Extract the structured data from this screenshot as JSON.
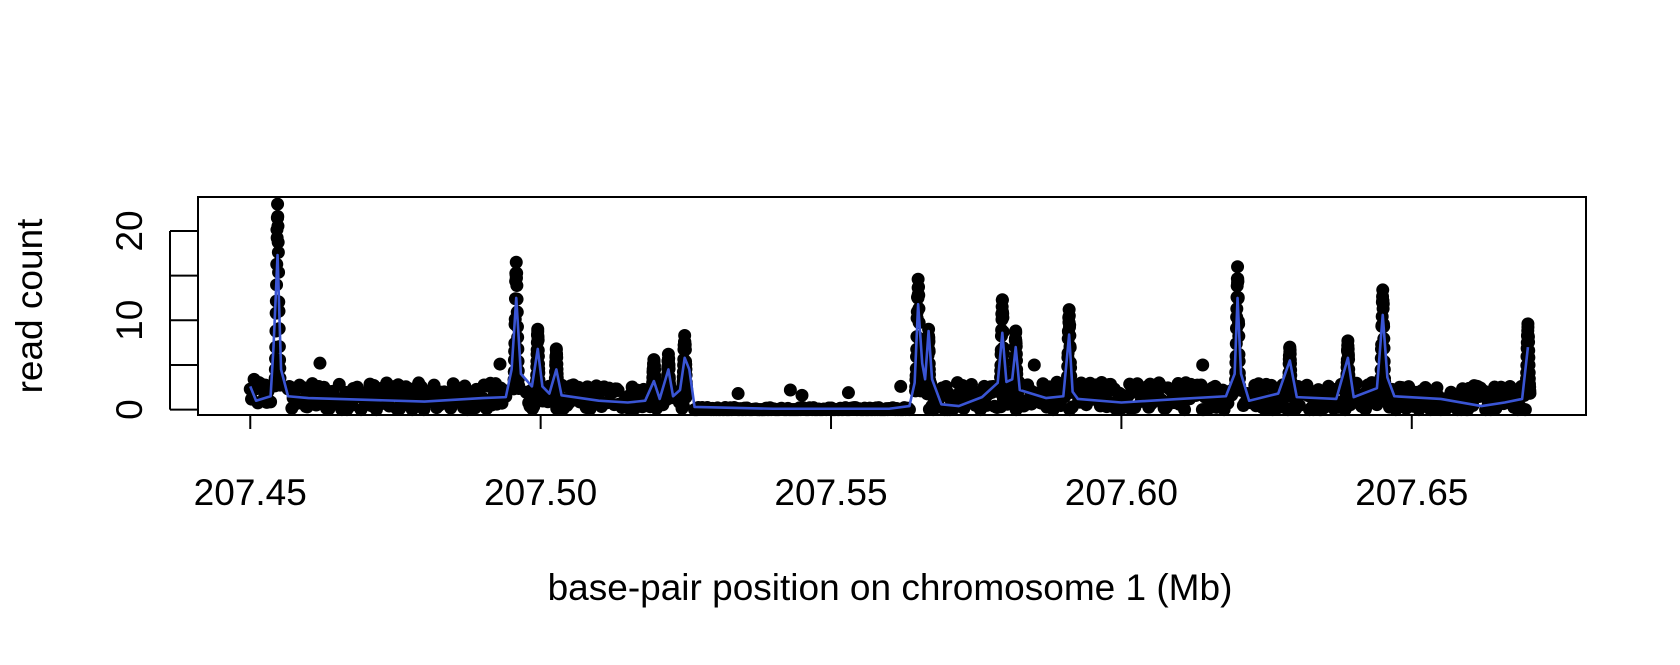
{
  "chart_data": {
    "type": "scatter",
    "title": "",
    "xlabel": "base-pair position on chromosome 1 (Mb)",
    "ylabel": "read count",
    "xlim": [
      207.441,
      207.68
    ],
    "ylim": [
      -0.6,
      23.8
    ],
    "xticks": [
      207.45,
      207.5,
      207.55,
      207.6,
      207.65
    ],
    "xtick_labels": [
      "207.45",
      "207.50",
      "207.55",
      "207.60",
      "207.65"
    ],
    "yticks": [
      0,
      5,
      10,
      15,
      20
    ],
    "ytick_labels": [
      "0",
      "",
      "10",
      "",
      "20"
    ],
    "grid": false,
    "legend": "none",
    "colors": {
      "points": "#000000",
      "smooth_line": "#3a55d4"
    },
    "series": [
      {
        "type": "points",
        "baseline_segments": [
          {
            "from": 207.45,
            "to": 207.4535,
            "mean": 1.8,
            "spread": 1.6
          },
          {
            "from": 207.4565,
            "to": 207.494,
            "mean": 1.4,
            "spread": 1.6
          },
          {
            "from": 207.4975,
            "to": 207.525,
            "mean": 1.4,
            "spread": 1.4
          },
          {
            "from": 207.5265,
            "to": 207.5635,
            "mean": 0.0,
            "spread": 0.25
          },
          {
            "from": 207.5665,
            "to": 207.619,
            "mean": 1.5,
            "spread": 1.6
          },
          {
            "from": 207.621,
            "to": 207.644,
            "mean": 1.5,
            "spread": 1.6
          },
          {
            "from": 207.6455,
            "to": 207.67,
            "mean": 1.2,
            "spread": 1.5
          }
        ],
        "peaks": [
          {
            "x": 207.4547,
            "height": 23.0,
            "width": 0.0009
          },
          {
            "x": 207.4958,
            "height": 16.5,
            "width": 0.0009
          },
          {
            "x": 207.4995,
            "height": 9.0,
            "width": 0.0006
          },
          {
            "x": 207.5027,
            "height": 6.8,
            "width": 0.0006
          },
          {
            "x": 207.5195,
            "height": 5.6,
            "width": 0.0008
          },
          {
            "x": 207.522,
            "height": 6.2,
            "width": 0.0006
          },
          {
            "x": 207.5248,
            "height": 8.3,
            "width": 0.0008
          },
          {
            "x": 207.565,
            "height": 14.6,
            "width": 0.0009
          },
          {
            "x": 207.5668,
            "height": 9.0,
            "width": 0.0005
          },
          {
            "x": 207.5795,
            "height": 12.3,
            "width": 0.0008
          },
          {
            "x": 207.5818,
            "height": 8.8,
            "width": 0.0006
          },
          {
            "x": 207.591,
            "height": 11.2,
            "width": 0.0008
          },
          {
            "x": 207.62,
            "height": 16.0,
            "width": 0.0008
          },
          {
            "x": 207.629,
            "height": 7.0,
            "width": 0.0006
          },
          {
            "x": 207.639,
            "height": 7.7,
            "width": 0.0006
          },
          {
            "x": 207.645,
            "height": 13.4,
            "width": 0.0008
          },
          {
            "x": 207.67,
            "height": 9.6,
            "width": 0.0007
          }
        ],
        "isolated_points": [
          {
            "x": 207.462,
            "y": 5.2
          },
          {
            "x": 207.493,
            "y": 5.1
          },
          {
            "x": 207.534,
            "y": 1.8
          },
          {
            "x": 207.543,
            "y": 2.2
          },
          {
            "x": 207.545,
            "y": 1.6
          },
          {
            "x": 207.553,
            "y": 1.9
          },
          {
            "x": 207.562,
            "y": 2.6
          },
          {
            "x": 207.585,
            "y": 5.0
          },
          {
            "x": 207.614,
            "y": 5.0
          }
        ]
      },
      {
        "type": "line",
        "points": [
          [
            207.45,
            2.6
          ],
          [
            207.451,
            1.0
          ],
          [
            207.4535,
            1.5
          ],
          [
            207.454,
            7.0
          ],
          [
            207.4547,
            17.3
          ],
          [
            207.4553,
            4.5
          ],
          [
            207.4565,
            1.5
          ],
          [
            207.46,
            1.3
          ],
          [
            207.47,
            1.1
          ],
          [
            207.48,
            0.9
          ],
          [
            207.49,
            1.3
          ],
          [
            207.494,
            1.4
          ],
          [
            207.495,
            4.5
          ],
          [
            207.4958,
            12.5
          ],
          [
            207.4966,
            4.0
          ],
          [
            207.4985,
            2.6
          ],
          [
            207.4995,
            6.8
          ],
          [
            207.5003,
            2.6
          ],
          [
            207.5015,
            1.8
          ],
          [
            207.5027,
            4.5
          ],
          [
            207.5036,
            1.6
          ],
          [
            207.51,
            1.0
          ],
          [
            207.515,
            0.8
          ],
          [
            207.518,
            1.0
          ],
          [
            207.5195,
            3.2
          ],
          [
            207.5205,
            1.2
          ],
          [
            207.522,
            4.5
          ],
          [
            207.5228,
            1.5
          ],
          [
            207.524,
            2.2
          ],
          [
            207.5248,
            5.8
          ],
          [
            207.5256,
            4.5
          ],
          [
            207.5265,
            0.3
          ],
          [
            207.54,
            0.1
          ],
          [
            207.56,
            0.1
          ],
          [
            207.5635,
            0.4
          ],
          [
            207.5644,
            3.0
          ],
          [
            207.565,
            11.8
          ],
          [
            207.5657,
            5.2
          ],
          [
            207.5662,
            3.4
          ],
          [
            207.5668,
            8.8
          ],
          [
            207.5674,
            3.4
          ],
          [
            207.569,
            0.6
          ],
          [
            207.572,
            0.4
          ],
          [
            207.576,
            1.4
          ],
          [
            207.5787,
            3.0
          ],
          [
            207.5795,
            8.6
          ],
          [
            207.5802,
            3.1
          ],
          [
            207.5812,
            3.4
          ],
          [
            207.5818,
            7.0
          ],
          [
            207.5825,
            2.2
          ],
          [
            207.587,
            1.3
          ],
          [
            207.59,
            1.5
          ],
          [
            207.591,
            8.4
          ],
          [
            207.5916,
            2.0
          ],
          [
            207.5925,
            1.2
          ],
          [
            207.6,
            0.8
          ],
          [
            207.61,
            1.2
          ],
          [
            207.618,
            1.5
          ],
          [
            207.6195,
            4.0
          ],
          [
            207.62,
            12.5
          ],
          [
            207.6206,
            4.0
          ],
          [
            207.622,
            1.0
          ],
          [
            207.627,
            1.8
          ],
          [
            207.629,
            5.5
          ],
          [
            207.6302,
            1.4
          ],
          [
            207.637,
            1.2
          ],
          [
            207.639,
            5.8
          ],
          [
            207.64,
            1.4
          ],
          [
            207.644,
            2.4
          ],
          [
            207.645,
            10.6
          ],
          [
            207.6458,
            3.6
          ],
          [
            207.647,
            1.5
          ],
          [
            207.655,
            1.2
          ],
          [
            207.662,
            0.4
          ],
          [
            207.666,
            0.8
          ],
          [
            207.669,
            1.2
          ],
          [
            207.67,
            7.0
          ]
        ]
      }
    ]
  }
}
